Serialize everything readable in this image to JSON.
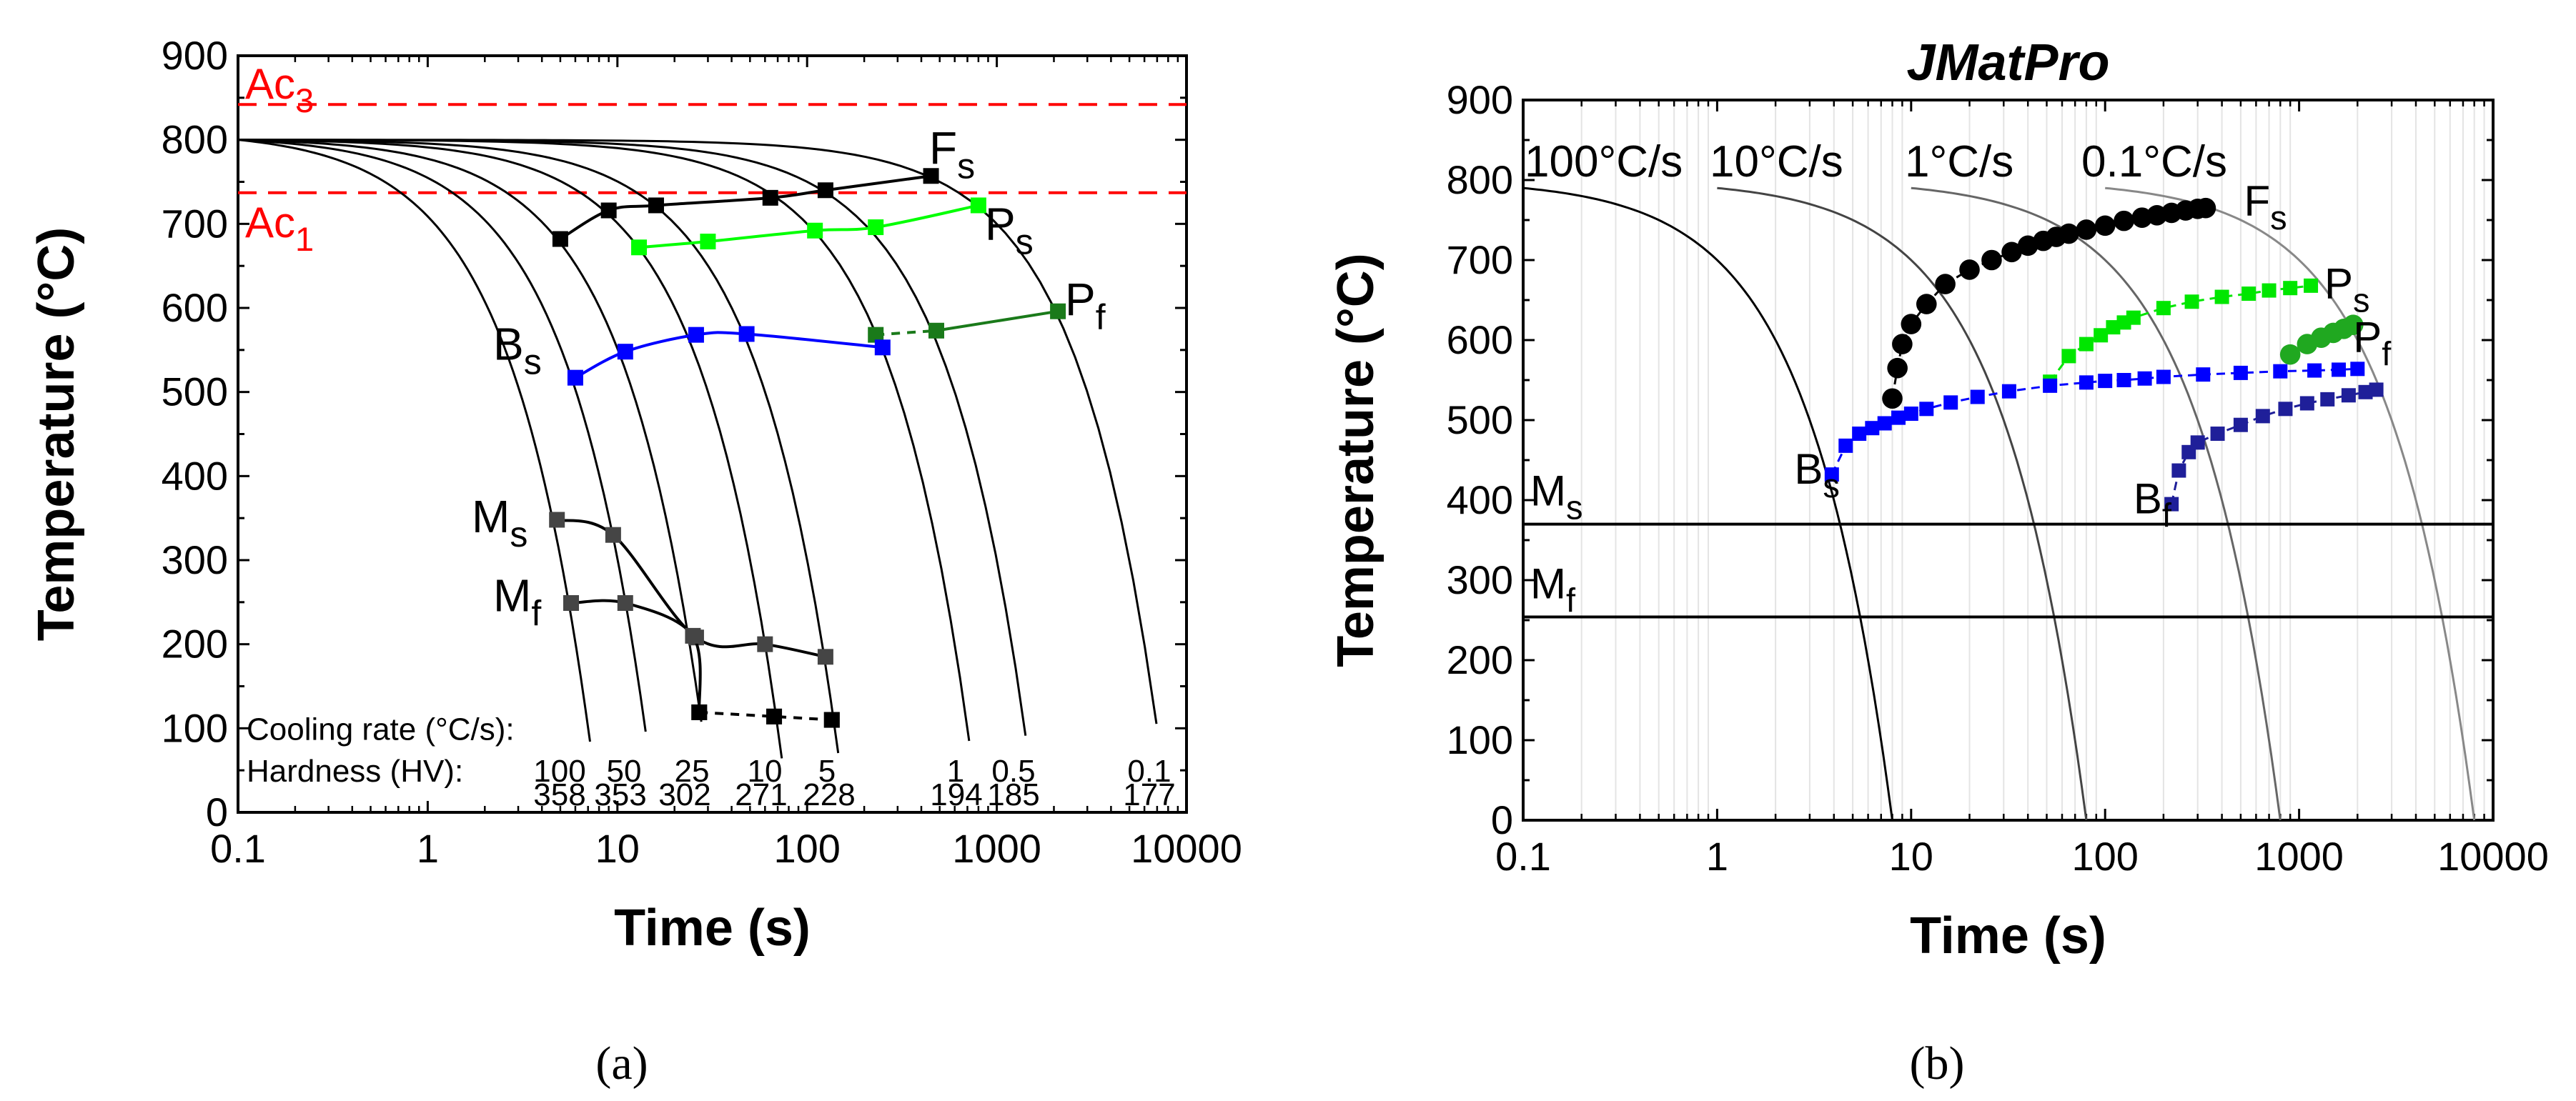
{
  "figure": {
    "sub_a": "(a)",
    "sub_b": "(b)"
  },
  "chart_data": [
    {
      "type": "line",
      "title": "",
      "xlabel": "Time (s)",
      "ylabel": "Temperature (°C)",
      "xscale": "log",
      "xlim": [
        0.1,
        10000
      ],
      "ylim": [
        0,
        900
      ],
      "xticks": [
        "0.1",
        "1",
        "10",
        "100",
        "1000",
        "10000"
      ],
      "yticks": [
        "0",
        "100",
        "200",
        "300",
        "400",
        "500",
        "600",
        "700",
        "800",
        "900"
      ],
      "ref_lines": [
        {
          "name": "Ac3",
          "label_main": "Ac",
          "label_sub": "3",
          "y": 842,
          "color": "#ff0000"
        },
        {
          "name": "Ac1",
          "label_main": "Ac",
          "label_sub": "1",
          "y": 737,
          "color": "#ff0000"
        }
      ],
      "cooling_curves": [
        {
          "rate": "100",
          "hardness": "358",
          "t_end": 8.0
        },
        {
          "rate": "50",
          "hardness": "353",
          "t_end": 16
        },
        {
          "rate": "25",
          "hardness": "302",
          "t_end": 32
        },
        {
          "rate": "10",
          "hardness": "271",
          "t_end": 80
        },
        {
          "rate": "5",
          "hardness": "228",
          "t_end": 160
        },
        {
          "rate": "1",
          "hardness": "194",
          "t_end": 800
        },
        {
          "rate": "0.5",
          "hardness": "185",
          "t_end": 1600
        },
        {
          "rate": "0.1",
          "hardness": "177",
          "t_end": 8000
        }
      ],
      "cooling_label": "Cooling rate (°C/s):",
      "hardness_label": "Hardness (HV):",
      "series": [
        {
          "name": "Fs",
          "label_main": "F",
          "label_sub": "s",
          "color": "#000000",
          "marker": "square",
          "points": [
            [
              5,
              682
            ],
            [
              9,
              716
            ],
            [
              16,
              722
            ],
            [
              64,
              731
            ],
            [
              125,
              740
            ],
            [
              450,
              757
            ]
          ]
        },
        {
          "name": "Ps",
          "label_main": "P",
          "label_sub": "s",
          "color": "#00ff00",
          "marker": "square",
          "points": [
            [
              13,
              672
            ],
            [
              30,
              679
            ],
            [
              110,
              692
            ],
            [
              230,
              696
            ],
            [
              800,
              722
            ]
          ]
        },
        {
          "name": "Pf",
          "label_main": "P",
          "label_sub": "f",
          "color": "#1a7a1a",
          "marker": "square",
          "points": [
            [
              230,
              568
            ],
            [
              480,
              573
            ],
            [
              2100,
              596
            ]
          ]
        },
        {
          "name": "Bs",
          "label_main": "B",
          "label_sub": "s",
          "color": "#0000ff",
          "marker": "square",
          "points": [
            [
              6,
              517
            ],
            [
              11,
              548
            ],
            [
              26,
              568
            ],
            [
              48,
              569
            ],
            [
              250,
              553
            ]
          ]
        },
        {
          "name": "Ms",
          "label_main": "M",
          "label_sub": "s",
          "color": "#454545",
          "marker": "square",
          "points": [
            [
              4.8,
              348
            ],
            [
              9.5,
              330
            ],
            [
              26,
              208
            ],
            [
              60,
              200
            ],
            [
              125,
              185
            ]
          ]
        },
        {
          "name": "Mf",
          "label_main": "M",
          "label_sub": "f",
          "color": "#454545",
          "marker": "square",
          "points": [
            [
              5.7,
              249
            ],
            [
              11,
              249
            ],
            [
              25,
              210
            ],
            [
              27,
              119
            ],
            [
              67,
              114
            ],
            [
              135,
              110
            ]
          ]
        }
      ]
    },
    {
      "type": "line",
      "title": "JMatPro",
      "xlabel": "Time (s)",
      "ylabel": "Temperature (°C)",
      "xscale": "log",
      "xlim": [
        0.1,
        10000
      ],
      "ylim": [
        0,
        900
      ],
      "xticks": [
        "0.1",
        "1",
        "10",
        "100",
        "1000",
        "10000"
      ],
      "yticks": [
        "0",
        "100",
        "200",
        "300",
        "400",
        "500",
        "600",
        "700",
        "800",
        "900"
      ],
      "cooling_curves": [
        {
          "rate": "100°C/s",
          "t_end": 8,
          "color": "#000000"
        },
        {
          "rate": "10°C/s",
          "t_end": 80,
          "color": "#444444"
        },
        {
          "rate": "1°C/s",
          "t_end": 800,
          "color": "#666666"
        },
        {
          "rate": "0.1°C/s",
          "t_end": 8000,
          "color": "#888888"
        }
      ],
      "hlines": [
        {
          "name": "Ms",
          "label_main": "M",
          "label_sub": "s",
          "y": 370
        },
        {
          "name": "Mf",
          "label_main": "M",
          "label_sub": "f",
          "y": 254
        }
      ],
      "series": [
        {
          "name": "Fs",
          "label_main": "F",
          "label_sub": "s",
          "color": "#000000",
          "marker": "circle",
          "points": [
            [
              8,
              527
            ],
            [
              8.5,
              565
            ],
            [
              9,
              595
            ],
            [
              10,
              620
            ],
            [
              12,
              645
            ],
            [
              15,
              670
            ],
            [
              20,
              688
            ],
            [
              26,
              700
            ],
            [
              33,
              710
            ],
            [
              40,
              718
            ],
            [
              48,
              724
            ],
            [
              56,
              729
            ],
            [
              65,
              733
            ],
            [
              80,
              738
            ],
            [
              100,
              743
            ],
            [
              125,
              749
            ],
            [
              155,
              753
            ],
            [
              185,
              756
            ],
            [
              220,
              759
            ],
            [
              260,
              762
            ],
            [
              300,
              764
            ],
            [
              330,
              765
            ]
          ]
        },
        {
          "name": "Ps",
          "label_main": "P",
          "label_sub": "s",
          "color": "#00e600",
          "marker": "square",
          "points": [
            [
              52,
              548
            ],
            [
              65,
              580
            ],
            [
              80,
              595
            ],
            [
              95,
              606
            ],
            [
              110,
              616
            ],
            [
              125,
              622
            ],
            [
              140,
              628
            ],
            [
              200,
              640
            ],
            [
              280,
              648
            ],
            [
              400,
              654
            ],
            [
              550,
              658
            ],
            [
              700,
              662
            ],
            [
              900,
              665
            ],
            [
              1150,
              668
            ]
          ]
        },
        {
          "name": "Pf",
          "label_main": "P",
          "label_sub": "f",
          "color": "#20a820",
          "marker": "circle",
          "points": [
            [
              900,
              582
            ],
            [
              1100,
              595
            ],
            [
              1300,
              603
            ],
            [
              1500,
              609
            ],
            [
              1700,
              614
            ],
            [
              1900,
              619
            ]
          ]
        },
        {
          "name": "Bs",
          "label_main": "B",
          "label_sub": "s",
          "color": "#0000ff",
          "marker": "square",
          "points": [
            [
              3.9,
              432
            ],
            [
              4.6,
              468
            ],
            [
              5.4,
              483
            ],
            [
              6.3,
              490
            ],
            [
              7.3,
              496
            ],
            [
              8.6,
              503
            ],
            [
              10,
              508
            ],
            [
              12,
              514
            ],
            [
              16,
              522
            ],
            [
              22,
              529
            ],
            [
              32,
              536
            ],
            [
              52,
              543
            ],
            [
              80,
              547
            ],
            [
              100,
              549
            ],
            [
              125,
              550
            ],
            [
              160,
              552
            ],
            [
              200,
              554
            ],
            [
              320,
              557
            ],
            [
              500,
              559
            ],
            [
              800,
              561
            ],
            [
              1200,
              562
            ],
            [
              1600,
              563
            ],
            [
              2000,
              564
            ]
          ]
        },
        {
          "name": "Bf",
          "label_main": "B",
          "label_sub": "f",
          "color": "#1f1f99",
          "marker": "square",
          "points": [
            [
              220,
              395
            ],
            [
              240,
              437
            ],
            [
              270,
              460
            ],
            [
              300,
              472
            ],
            [
              380,
              483
            ],
            [
              500,
              494
            ],
            [
              650,
              505
            ],
            [
              850,
              514
            ],
            [
              1100,
              521
            ],
            [
              1400,
              526
            ],
            [
              1800,
              531
            ],
            [
              2200,
              535
            ],
            [
              2500,
              538
            ]
          ]
        }
      ]
    }
  ]
}
